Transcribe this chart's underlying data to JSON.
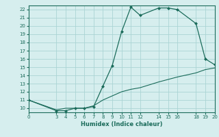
{
  "xlabel": "Humidex (Indice chaleur)",
  "bg_color": "#d6eeee",
  "grid_color": "#aad4d4",
  "line_color": "#1a6b5a",
  "curve1_x": [
    0,
    3,
    4,
    5,
    6,
    7,
    8,
    9,
    10,
    11,
    12,
    14,
    15,
    16,
    18,
    19,
    20
  ],
  "curve1_y": [
    11,
    9.7,
    9.7,
    10,
    10,
    10.2,
    12.7,
    15.2,
    19.3,
    22.3,
    21.3,
    22.2,
    22.2,
    22,
    20.3,
    16,
    15.3
  ],
  "curve2_x": [
    0,
    3,
    4,
    5,
    6,
    7,
    8,
    9,
    10,
    11,
    12,
    14,
    15,
    16,
    18,
    19,
    20
  ],
  "curve2_y": [
    11,
    9.8,
    10,
    10,
    10,
    10.3,
    11,
    11.5,
    12,
    12.3,
    12.5,
    13.2,
    13.5,
    13.8,
    14.3,
    14.7,
    14.9
  ],
  "xlim": [
    0,
    20
  ],
  "ylim": [
    9.5,
    22.5
  ],
  "xticks": [
    0,
    3,
    4,
    5,
    6,
    7,
    8,
    9,
    10,
    11,
    12,
    14,
    15,
    16,
    18,
    19,
    20
  ],
  "yticks": [
    10,
    11,
    12,
    13,
    14,
    15,
    16,
    17,
    18,
    19,
    20,
    21,
    22
  ]
}
